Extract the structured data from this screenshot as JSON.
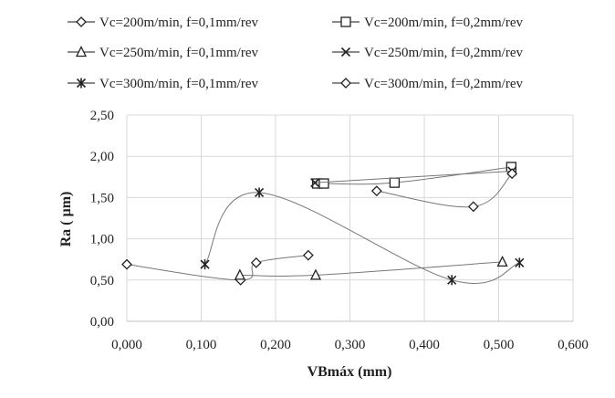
{
  "chart_data": {
    "type": "scatter",
    "title": "",
    "xlabel": "VBmáx (mm)",
    "ylabel": "Ra ( µm)",
    "xlim": [
      0,
      0.6
    ],
    "ylim": [
      0,
      2.5
    ],
    "x_ticks": [
      "0,000",
      "0,100",
      "0,200",
      "0,300",
      "0,400",
      "0,500",
      "0,600"
    ],
    "y_ticks": [
      "0,00",
      "0,50",
      "1,00",
      "1,50",
      "2,00",
      "2,50"
    ],
    "grid": true,
    "legend_position": "top",
    "series": [
      {
        "name": "Vc=200m/min, f=0,1mm/rev",
        "marker": "diamond",
        "x": [
          0.0,
          0.153,
          0.174,
          0.244
        ],
        "y": [
          0.69,
          0.5,
          0.71,
          0.8
        ]
      },
      {
        "name": "Vc=200m/min, f=0,2mm/rev",
        "marker": "square",
        "x": [
          0.256,
          0.265,
          0.36,
          0.517
        ],
        "y": [
          1.67,
          1.67,
          1.68,
          1.87
        ]
      },
      {
        "name": "Vc=250m/min, f=0,1mm/rev",
        "marker": "triangle",
        "x": [
          0.152,
          0.254,
          0.505
        ],
        "y": [
          0.56,
          0.56,
          0.72
        ]
      },
      {
        "name": "Vc=250m/min, f=0,2mm/rev",
        "marker": "x",
        "x": [
          0.253,
          0.518
        ],
        "y": [
          1.68,
          1.82
        ]
      },
      {
        "name": "Vc=300m/min, f=0,1mm/rev",
        "marker": "star",
        "x": [
          0.105,
          0.178,
          0.437,
          0.528
        ],
        "y": [
          0.69,
          1.56,
          0.5,
          0.71
        ]
      },
      {
        "name": "Vc=300m/min, f=0,2mm/rev",
        "marker": "diamond",
        "x": [
          0.336,
          0.466,
          0.518
        ],
        "y": [
          1.58,
          1.39,
          1.79
        ]
      }
    ]
  }
}
